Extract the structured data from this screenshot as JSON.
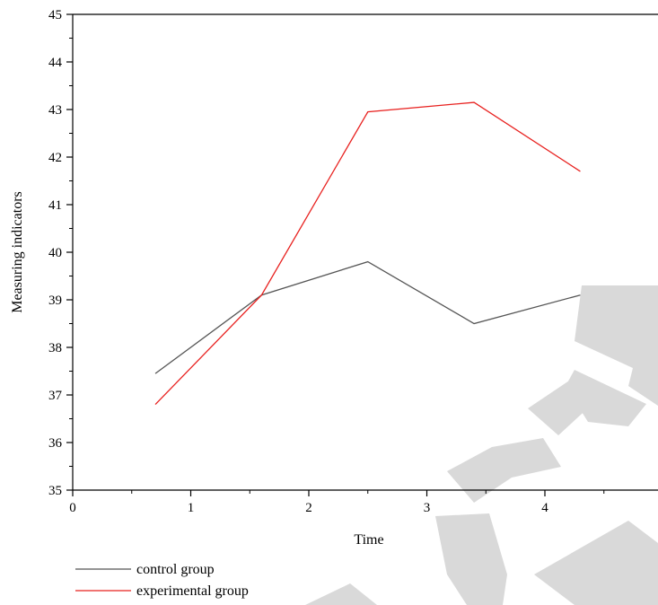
{
  "chart_data": {
    "type": "line",
    "xlabel": "Time",
    "ylabel": "Measuring indicators",
    "xlim": [
      0,
      5
    ],
    "ylim": [
      35,
      45
    ],
    "x_ticks": [
      "0",
      "1",
      "2",
      "3",
      "4"
    ],
    "y_ticks": [
      "35",
      "36",
      "37",
      "38",
      "39",
      "40",
      "41",
      "42",
      "43",
      "44",
      "45"
    ],
    "grid": false,
    "legend_position": "bottom-left",
    "x": [
      0.7,
      1.6,
      2.5,
      3.4,
      4.3
    ],
    "series": [
      {
        "name": "control group",
        "color": "#555555",
        "values": [
          37.45,
          39.1,
          39.8,
          38.5,
          39.1
        ]
      },
      {
        "name": "experimental group",
        "color": "#e8211f",
        "values": [
          36.8,
          39.1,
          42.95,
          43.15,
          41.7
        ]
      }
    ]
  },
  "watermark": {
    "text": "RETRACTED",
    "color": "#d9d9d9"
  }
}
